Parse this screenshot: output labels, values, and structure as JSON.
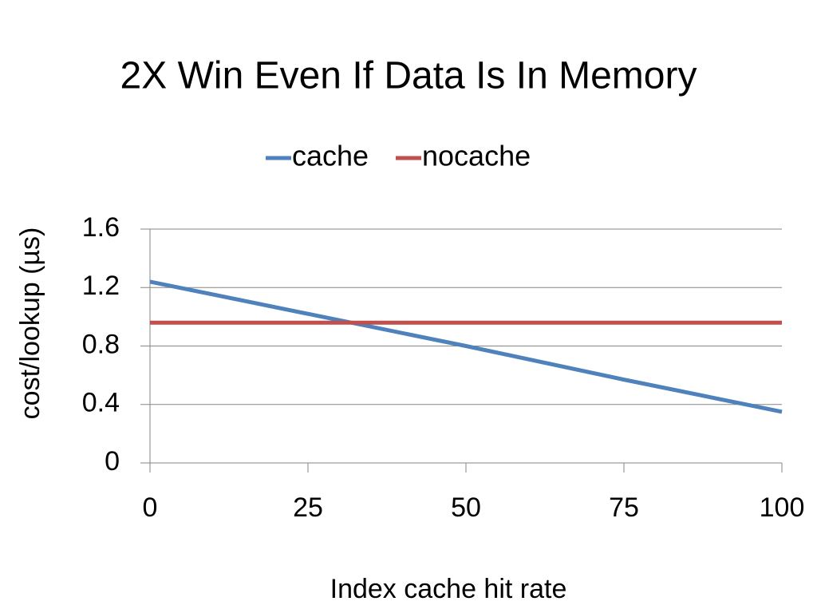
{
  "chart_data": {
    "type": "line",
    "title": "2X Win Even If Data Is In Memory",
    "x_label": "Index cache hit rate",
    "y_label": "cost/lookup (µs)",
    "x": [
      0,
      25,
      50,
      75,
      100
    ],
    "series": [
      {
        "name": "cache",
        "color": "#4f81bd",
        "values": [
          1.24,
          1.02,
          0.8,
          0.57,
          0.35
        ]
      },
      {
        "name": "nocache",
        "color": "#c0504d",
        "values": [
          0.96,
          0.96,
          0.96,
          0.96,
          0.96
        ]
      }
    ],
    "xlim": [
      0,
      100
    ],
    "xticks": [
      0,
      25,
      50,
      75,
      100
    ],
    "ylim": [
      0,
      1.6
    ],
    "yticks": [
      0,
      0.4,
      0.8,
      1.2,
      1.6
    ],
    "grid": true,
    "legend": "top"
  }
}
